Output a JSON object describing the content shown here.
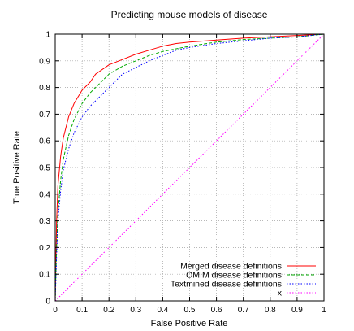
{
  "chart_data": {
    "type": "line",
    "title": "Predicting mouse models of disease",
    "xlabel": "False Positive Rate",
    "ylabel": "True Positive Rate",
    "xlim": [
      0,
      1
    ],
    "ylim": [
      0,
      1
    ],
    "xticks": [
      0,
      0.1,
      0.2,
      0.3,
      0.4,
      0.5,
      0.6,
      0.7,
      0.8,
      0.9,
      1
    ],
    "yticks": [
      0,
      0.1,
      0.2,
      0.3,
      0.4,
      0.5,
      0.6,
      0.7,
      0.8,
      0.9,
      1
    ],
    "xtick_labels": [
      "0",
      "0.1",
      "0.2",
      "0.3",
      "0.4",
      "0.5",
      "0.6",
      "0.7",
      "0.8",
      "0.9",
      "1"
    ],
    "ytick_labels": [
      "0",
      "0.1",
      "0.2",
      "0.3",
      "0.4",
      "0.5",
      "0.6",
      "0.7",
      "0.8",
      "0.9",
      "1"
    ],
    "grid": true,
    "legend_position": "bottom-right",
    "series": [
      {
        "name": "Merged disease definitions",
        "color": "#ff0000",
        "style": "solid",
        "x": [
          0,
          0.005,
          0.01,
          0.02,
          0.03,
          0.05,
          0.07,
          0.1,
          0.13,
          0.15,
          0.2,
          0.25,
          0.3,
          0.35,
          0.4,
          0.45,
          0.5,
          0.6,
          0.7,
          0.8,
          0.9,
          1
        ],
        "y": [
          0,
          0.3,
          0.43,
          0.54,
          0.61,
          0.69,
          0.74,
          0.79,
          0.82,
          0.85,
          0.885,
          0.905,
          0.925,
          0.94,
          0.955,
          0.965,
          0.97,
          0.978,
          0.985,
          0.99,
          0.995,
          1
        ]
      },
      {
        "name": "OMIM disease definitions",
        "color": "#00aa00",
        "style": "dashed",
        "x": [
          0,
          0.005,
          0.01,
          0.02,
          0.03,
          0.05,
          0.07,
          0.1,
          0.13,
          0.15,
          0.2,
          0.25,
          0.3,
          0.35,
          0.4,
          0.45,
          0.5,
          0.6,
          0.7,
          0.8,
          0.9,
          1
        ],
        "y": [
          0,
          0.2,
          0.33,
          0.45,
          0.53,
          0.62,
          0.68,
          0.74,
          0.78,
          0.8,
          0.85,
          0.88,
          0.9,
          0.92,
          0.935,
          0.945,
          0.955,
          0.97,
          0.98,
          0.985,
          0.99,
          1
        ]
      },
      {
        "name": "Textmined disease definitions",
        "color": "#0000ff",
        "style": "dotted",
        "x": [
          0,
          0.005,
          0.01,
          0.02,
          0.03,
          0.05,
          0.07,
          0.1,
          0.13,
          0.15,
          0.2,
          0.25,
          0.3,
          0.35,
          0.4,
          0.45,
          0.5,
          0.6,
          0.7,
          0.8,
          0.9,
          1
        ],
        "y": [
          0,
          0.17,
          0.3,
          0.41,
          0.49,
          0.57,
          0.63,
          0.69,
          0.73,
          0.75,
          0.8,
          0.85,
          0.875,
          0.9,
          0.92,
          0.94,
          0.95,
          0.965,
          0.975,
          0.985,
          0.99,
          1
        ]
      },
      {
        "name": "x",
        "color": "#ff00ff",
        "style": "dotted",
        "x": [
          0,
          1
        ],
        "y": [
          0,
          1
        ]
      }
    ]
  }
}
